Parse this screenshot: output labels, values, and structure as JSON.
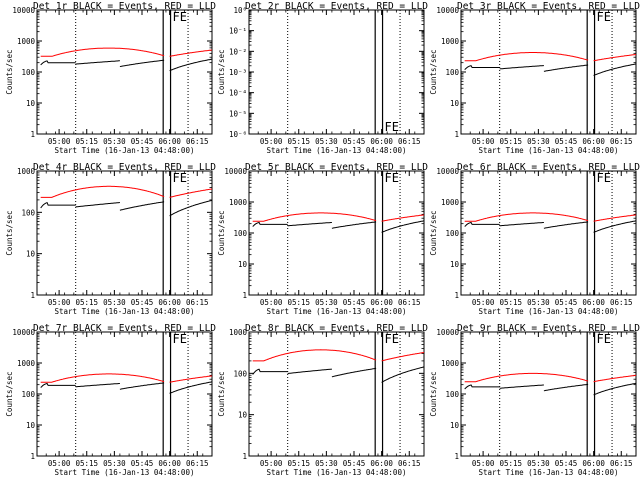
{
  "chart_data": {
    "type": "line",
    "layout": "3x3 grid",
    "x_tick_labels": [
      "05:00",
      "05:15",
      "05:30",
      "05:45",
      "06:00",
      "06:15"
    ],
    "xlabel": "Start Time (16-Jan-13 04:48:00)",
    "ylabel": "Counts/sec",
    "legend": "BLACK = Events, RED = LLD",
    "series_colors": {
      "events": "#000000",
      "lld": "#ff0000"
    },
    "flag_label": "FE",
    "panels": [
      {
        "title": "Det 1r BLACK = Events, RED = LLD",
        "y_scale": "log",
        "ylim": [
          1,
          10000
        ],
        "y_tick_labels": [
          "1",
          "10",
          "100",
          "1000",
          "10000"
        ],
        "events_level": 200,
        "lld_level": 320,
        "has_data": true
      },
      {
        "title": "Det 2r BLACK = Events, RED = LLD",
        "y_scale": "log",
        "ylim": [
          1e-06,
          1
        ],
        "y_tick_labels": [
          "10⁰",
          "10⁻¹",
          "10⁻²",
          "10⁻³",
          "10⁻⁴",
          "10⁻⁵",
          "10⁻⁶"
        ],
        "has_data": false
      },
      {
        "title": "Det 3r BLACK = Events, RED = LLD",
        "y_scale": "log",
        "ylim": [
          1,
          10000
        ],
        "y_tick_labels": [
          "1",
          "10",
          "100",
          "1000",
          "10000"
        ],
        "events_level": 140,
        "lld_level": 230,
        "has_data": true
      },
      {
        "title": "Det 4r BLACK = Events, RED = LLD",
        "y_scale": "log",
        "ylim": [
          1,
          1000
        ],
        "y_tick_labels": [
          "1",
          "10",
          "100",
          "1000"
        ],
        "events_level": 150,
        "lld_level": 230,
        "has_data": true
      },
      {
        "title": "Det 5r BLACK = Events, RED = LLD",
        "y_scale": "log",
        "ylim": [
          1,
          10000
        ],
        "y_tick_labels": [
          "1",
          "10",
          "100",
          "1000",
          "10000"
        ],
        "events_level": 190,
        "lld_level": 240,
        "has_data": true
      },
      {
        "title": "Det 6r BLACK = Events, RED = LLD",
        "y_scale": "log",
        "ylim": [
          1,
          10000
        ],
        "y_tick_labels": [
          "1",
          "10",
          "100",
          "1000",
          "10000"
        ],
        "events_level": 190,
        "lld_level": 240,
        "has_data": true
      },
      {
        "title": "Det 7r BLACK = Events, RED = LLD",
        "y_scale": "log",
        "ylim": [
          1,
          10000
        ],
        "y_tick_labels": [
          "1",
          "10",
          "100",
          "1000",
          "10000"
        ],
        "events_level": 190,
        "lld_level": 240,
        "has_data": true
      },
      {
        "title": "Det 8r BLACK = Events, RED = LLD",
        "y_scale": "log",
        "ylim": [
          1,
          1000
        ],
        "y_tick_labels": [
          "1",
          "10",
          "100",
          "1000"
        ],
        "events_level": 110,
        "lld_level": 200,
        "has_data": true
      },
      {
        "title": "Det 9r BLACK = Events, RED = LLD",
        "y_scale": "log",
        "ylim": [
          1,
          10000
        ],
        "y_tick_labels": [
          "1",
          "10",
          "100",
          "1000",
          "10000"
        ],
        "events_level": 170,
        "lld_level": 250,
        "has_data": true
      }
    ]
  }
}
